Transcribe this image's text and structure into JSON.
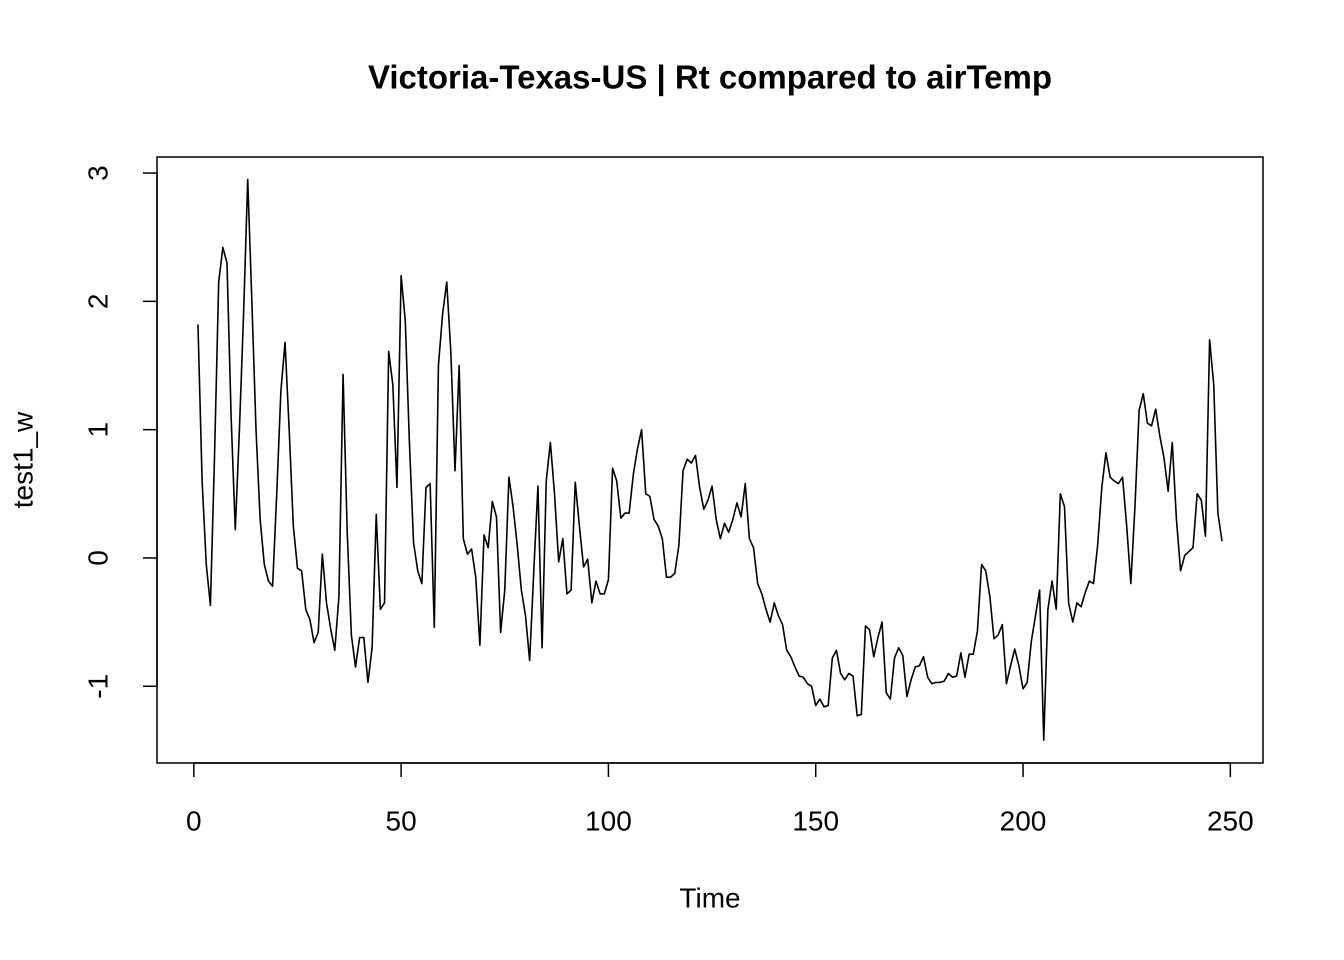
{
  "chart_data": {
    "type": "line",
    "title": "Victoria-Texas-US | Rt compared to airTemp",
    "x_label": "Time",
    "y_label": "test1_w",
    "color": "#000000",
    "xlim": [
      -8.88,
      257.88
    ],
    "ylim": [
      -1.598,
      3.125
    ],
    "xticks": [
      0,
      50,
      100,
      150,
      200,
      250
    ],
    "yticks": [
      -1,
      0,
      1,
      2,
      3
    ],
    "x": [
      1,
      2,
      3,
      4,
      5,
      6,
      7,
      8,
      9,
      10,
      11,
      12,
      13,
      14,
      15,
      16,
      17,
      18,
      19,
      20,
      21,
      22,
      23,
      24,
      25,
      26,
      27,
      28,
      29,
      30,
      31,
      32,
      33,
      34,
      35,
      36,
      37,
      38,
      39,
      40,
      41,
      42,
      43,
      44,
      45,
      46,
      47,
      48,
      49,
      50,
      51,
      52,
      53,
      54,
      55,
      56,
      57,
      58,
      59,
      60,
      61,
      62,
      63,
      64,
      65,
      66,
      67,
      68,
      69,
      70,
      71,
      72,
      73,
      74,
      75,
      76,
      77,
      78,
      79,
      80,
      81,
      82,
      83,
      84,
      85,
      86,
      87,
      88,
      89,
      90,
      91,
      92,
      93,
      94,
      95,
      96,
      97,
      98,
      99,
      100,
      101,
      102,
      103,
      104,
      105,
      106,
      107,
      108,
      109,
      110,
      111,
      112,
      113,
      114,
      115,
      116,
      117,
      118,
      119,
      120,
      121,
      122,
      123,
      124,
      125,
      126,
      127,
      128,
      129,
      130,
      131,
      132,
      133,
      134,
      135,
      136,
      137,
      138,
      139,
      140,
      141,
      142,
      143,
      144,
      145,
      146,
      147,
      148,
      149,
      150,
      151,
      152,
      153,
      154,
      155,
      156,
      157,
      158,
      159,
      160,
      161,
      162,
      163,
      164,
      165,
      166,
      167,
      168,
      169,
      170,
      171,
      172,
      173,
      174,
      175,
      176,
      177,
      178,
      179,
      180,
      181,
      182,
      183,
      184,
      185,
      186,
      187,
      188,
      189,
      190,
      191,
      192,
      193,
      194,
      195,
      196,
      197,
      198,
      199,
      200,
      201,
      202,
      203,
      204,
      205,
      206,
      207,
      208,
      209,
      210,
      211,
      212,
      213,
      214,
      215,
      216,
      217,
      218,
      219,
      220,
      221,
      222,
      223,
      224,
      225,
      226,
      227,
      228,
      229,
      230,
      231,
      232,
      233,
      234,
      235,
      236,
      237,
      238,
      239,
      240,
      241,
      242,
      243,
      244,
      245,
      246,
      247,
      248
    ],
    "values": [
      1.82,
      0.6,
      -0.05,
      -0.37,
      0.8,
      2.15,
      2.42,
      2.3,
      1.1,
      0.22,
      1.0,
      1.9,
      2.95,
      2.0,
      1.0,
      0.3,
      -0.05,
      -0.18,
      -0.22,
      0.5,
      1.3,
      1.68,
      1.0,
      0.25,
      -0.08,
      -0.1,
      -0.4,
      -0.48,
      -0.66,
      -0.58,
      0.03,
      -0.35,
      -0.55,
      -0.72,
      -0.3,
      1.43,
      0.2,
      -0.6,
      -0.85,
      -0.62,
      -0.62,
      -0.97,
      -0.7,
      0.34,
      -0.4,
      -0.35,
      1.61,
      1.35,
      0.55,
      2.2,
      1.85,
      0.9,
      0.12,
      -0.1,
      -0.2,
      0.55,
      0.58,
      -0.54,
      1.5,
      1.9,
      2.15,
      1.6,
      0.68,
      1.5,
      0.15,
      0.03,
      0.07,
      -0.15,
      -0.68,
      0.18,
      0.08,
      0.44,
      0.32,
      -0.58,
      -0.25,
      0.63,
      0.4,
      0.1,
      -0.25,
      -0.45,
      -0.8,
      -0.1,
      0.56,
      -0.7,
      0.6,
      0.9,
      0.5,
      -0.03,
      0.15,
      -0.28,
      -0.25,
      0.59,
      0.25,
      -0.07,
      -0.01,
      -0.35,
      -0.18,
      -0.28,
      -0.28,
      -0.17,
      0.7,
      0.6,
      0.31,
      0.35,
      0.35,
      0.65,
      0.85,
      1.0,
      0.5,
      0.48,
      0.3,
      0.25,
      0.15,
      -0.15,
      -0.15,
      -0.12,
      0.1,
      0.68,
      0.77,
      0.74,
      0.8,
      0.55,
      0.38,
      0.45,
      0.56,
      0.3,
      0.15,
      0.27,
      0.2,
      0.3,
      0.43,
      0.32,
      0.58,
      0.15,
      0.08,
      -0.2,
      -0.28,
      -0.4,
      -0.5,
      -0.35,
      -0.45,
      -0.52,
      -0.72,
      -0.77,
      -0.85,
      -0.92,
      -0.93,
      -0.98,
      -1.0,
      -1.15,
      -1.1,
      -1.16,
      -1.15,
      -0.78,
      -0.72,
      -0.9,
      -0.95,
      -0.9,
      -0.92,
      -1.23,
      -1.22,
      -0.53,
      -0.56,
      -0.77,
      -0.62,
      -0.5,
      -1.05,
      -1.1,
      -0.78,
      -0.7,
      -0.76,
      -1.08,
      -0.95,
      -0.85,
      -0.84,
      -0.77,
      -0.93,
      -0.98,
      -0.97,
      -0.97,
      -0.96,
      -0.9,
      -0.93,
      -0.92,
      -0.74,
      -0.93,
      -0.75,
      -0.75,
      -0.57,
      -0.05,
      -0.1,
      -0.3,
      -0.63,
      -0.6,
      -0.52,
      -0.98,
      -0.84,
      -0.71,
      -0.84,
      -1.02,
      -0.97,
      -0.65,
      -0.45,
      -0.25,
      -1.42,
      -0.4,
      -0.18,
      -0.4,
      0.5,
      0.4,
      -0.35,
      -0.5,
      -0.35,
      -0.38,
      -0.27,
      -0.18,
      -0.2,
      0.1,
      0.55,
      0.82,
      0.63,
      0.6,
      0.58,
      0.63,
      0.25,
      -0.2,
      0.4,
      1.15,
      1.28,
      1.05,
      1.03,
      1.16,
      0.95,
      0.78,
      0.52,
      0.9,
      0.3,
      -0.1,
      0.02,
      0.05,
      0.08,
      0.5,
      0.45,
      0.17,
      1.7,
      1.35,
      0.35,
      0.13
    ]
  }
}
